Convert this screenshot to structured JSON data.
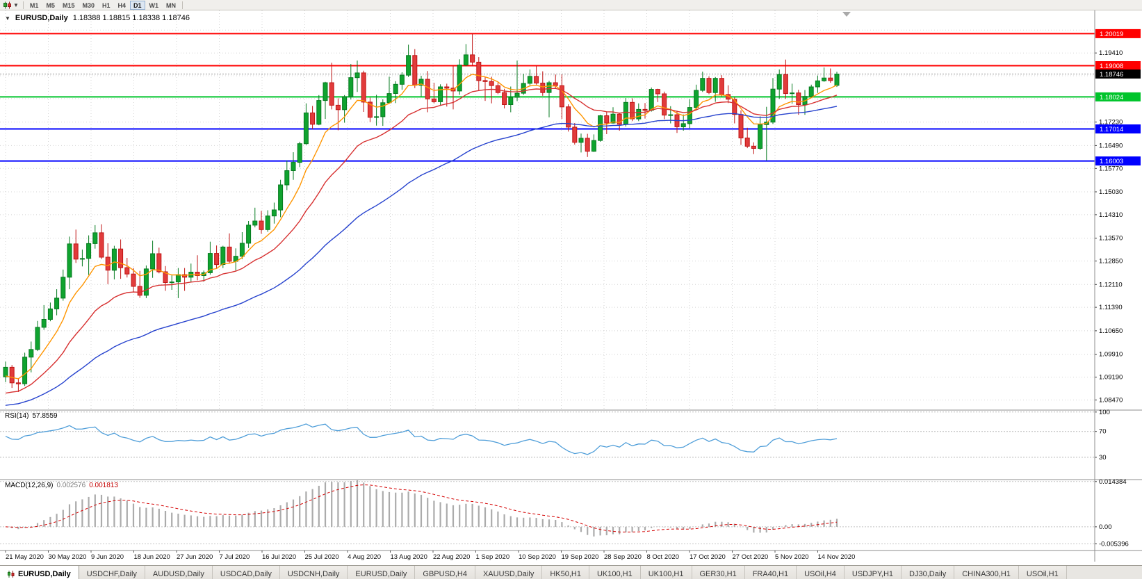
{
  "toolbar": {
    "timeframes": [
      "M1",
      "M5",
      "M15",
      "M30",
      "H1",
      "H4",
      "D1",
      "W1",
      "MN"
    ],
    "active_timeframe": "D1"
  },
  "chart": {
    "title": "EURUSD,Daily",
    "ohlc_display": "1.18388 1.18815 1.18338 1.18746",
    "open": "1.18388",
    "high": "1.18815",
    "low": "1.18338",
    "close": "1.18746"
  },
  "price_scale": {
    "ticks": [
      "1.19410",
      "1.17230",
      "1.16490",
      "1.15770",
      "1.15030",
      "1.14310",
      "1.13570",
      "1.12850",
      "1.12110",
      "1.11390",
      "1.10650",
      "1.09910",
      "1.09190",
      "1.08470"
    ],
    "hidden_grid": [
      "1.20130",
      "1.18690",
      "1.17970"
    ],
    "min": 1.0815,
    "max": 1.2075
  },
  "chart_data": {
    "type": "candlestick",
    "symbol": "EURUSD",
    "timeframe": "Daily",
    "title": "EURUSD,Daily",
    "x_labels": [
      "21 May 2020",
      "30 May 2020",
      "9 Jun 2020",
      "18 Jun 2020",
      "27 Jun 2020",
      "7 Jul 2020",
      "16 Jul 2020",
      "25 Jul 2020",
      "4 Aug 2020",
      "13 Aug 2020",
      "22 Aug 2020",
      "1 Sep 2020",
      "10 Sep 2020",
      "19 Sep 2020",
      "28 Sep 2020",
      "8 Oct 2020",
      "17 Oct 2020",
      "27 Oct 2020",
      "5 Nov 2020",
      "14 Nov 2020"
    ],
    "ylim": [
      1.0815,
      1.2075
    ],
    "candles": [
      [
        1.092,
        1.0968,
        1.0903,
        1.095
      ],
      [
        1.095,
        1.0957,
        1.0885,
        1.0901
      ],
      [
        1.0901,
        1.0916,
        1.0872,
        1.0898
      ],
      [
        1.0898,
        1.0996,
        1.0891,
        1.0982
      ],
      [
        1.0982,
        1.1031,
        1.0934,
        1.1006
      ],
      [
        1.1006,
        1.1096,
        1.1001,
        1.1076
      ],
      [
        1.1076,
        1.1146,
        1.1068,
        1.1101
      ],
      [
        1.1101,
        1.1154,
        1.1095,
        1.1134
      ],
      [
        1.1134,
        1.1196,
        1.1114,
        1.1168
      ],
      [
        1.1168,
        1.1258,
        1.116,
        1.1234
      ],
      [
        1.1234,
        1.1362,
        1.1196,
        1.1339
      ],
      [
        1.1339,
        1.1384,
        1.1279,
        1.1291
      ],
      [
        1.1291,
        1.1321,
        1.1268,
        1.1293
      ],
      [
        1.1293,
        1.1366,
        1.1241,
        1.134
      ],
      [
        1.134,
        1.1398,
        1.1324,
        1.1374
      ],
      [
        1.1374,
        1.1401,
        1.1291,
        1.1297
      ],
      [
        1.1297,
        1.1341,
        1.1212,
        1.1256
      ],
      [
        1.1256,
        1.1333,
        1.1227,
        1.1323
      ],
      [
        1.1323,
        1.1353,
        1.1229,
        1.1264
      ],
      [
        1.1264,
        1.1295,
        1.1233,
        1.1244
      ],
      [
        1.1244,
        1.1263,
        1.1186,
        1.1205
      ],
      [
        1.1205,
        1.1254,
        1.1169,
        1.1177
      ],
      [
        1.1177,
        1.1271,
        1.1168,
        1.126
      ],
      [
        1.126,
        1.1349,
        1.1232,
        1.1308
      ],
      [
        1.1308,
        1.1327,
        1.1246,
        1.1251
      ],
      [
        1.1251,
        1.1269,
        1.1191,
        1.1217
      ],
      [
        1.1217,
        1.124,
        1.1194,
        1.1219
      ],
      [
        1.1219,
        1.1263,
        1.1168,
        1.1242
      ],
      [
        1.1242,
        1.1263,
        1.1191,
        1.1234
      ],
      [
        1.1234,
        1.1277,
        1.1218,
        1.125
      ],
      [
        1.125,
        1.1303,
        1.1224,
        1.1239
      ],
      [
        1.1239,
        1.1255,
        1.122,
        1.1248
      ],
      [
        1.1248,
        1.1346,
        1.1242,
        1.1309
      ],
      [
        1.1309,
        1.1334,
        1.126,
        1.1274
      ],
      [
        1.1274,
        1.1333,
        1.1263,
        1.1329
      ],
      [
        1.1329,
        1.1372,
        1.1277,
        1.1284
      ],
      [
        1.1284,
        1.1325,
        1.1255,
        1.13
      ],
      [
        1.13,
        1.1376,
        1.1291,
        1.1341
      ],
      [
        1.1341,
        1.1411,
        1.1326,
        1.1398
      ],
      [
        1.1398,
        1.1453,
        1.1391,
        1.1411
      ],
      [
        1.1411,
        1.1443,
        1.1371,
        1.1384
      ],
      [
        1.1384,
        1.1445,
        1.1377,
        1.1427
      ],
      [
        1.1427,
        1.1469,
        1.1403,
        1.1446
      ],
      [
        1.1446,
        1.1541,
        1.1423,
        1.1525
      ],
      [
        1.1525,
        1.1602,
        1.1508,
        1.157
      ],
      [
        1.157,
        1.1628,
        1.1541,
        1.1596
      ],
      [
        1.1596,
        1.1661,
        1.1581,
        1.1655
      ],
      [
        1.1655,
        1.1782,
        1.1651,
        1.1752
      ],
      [
        1.1752,
        1.1774,
        1.1701,
        1.1716
      ],
      [
        1.1716,
        1.1808,
        1.1713,
        1.1791
      ],
      [
        1.1791,
        1.185,
        1.1733,
        1.1847
      ],
      [
        1.1847,
        1.191,
        1.1763,
        1.1776
      ],
      [
        1.1776,
        1.1798,
        1.1697,
        1.1762
      ],
      [
        1.1762,
        1.1808,
        1.1721,
        1.1803
      ],
      [
        1.1803,
        1.1906,
        1.1794,
        1.1863
      ],
      [
        1.1863,
        1.1917,
        1.1818,
        1.1878
      ],
      [
        1.1878,
        1.1885,
        1.1755,
        1.1786
      ],
      [
        1.1786,
        1.18,
        1.1723,
        1.1738
      ],
      [
        1.1738,
        1.1809,
        1.1712,
        1.174
      ],
      [
        1.174,
        1.1795,
        1.1711,
        1.1784
      ],
      [
        1.1784,
        1.1866,
        1.1783,
        1.1813
      ],
      [
        1.1813,
        1.1852,
        1.1783,
        1.1842
      ],
      [
        1.1842,
        1.188,
        1.1825,
        1.1871
      ],
      [
        1.1871,
        1.1967,
        1.1865,
        1.1933
      ],
      [
        1.1933,
        1.1953,
        1.183,
        1.1839
      ],
      [
        1.1839,
        1.1869,
        1.1804,
        1.1858
      ],
      [
        1.1858,
        1.1884,
        1.1754,
        1.1796
      ],
      [
        1.1796,
        1.1847,
        1.1782,
        1.1787
      ],
      [
        1.1787,
        1.1842,
        1.1774,
        1.1834
      ],
      [
        1.1834,
        1.1844,
        1.1772,
        1.183
      ],
      [
        1.183,
        1.1901,
        1.1763,
        1.1821
      ],
      [
        1.1821,
        1.1921,
        1.1809,
        1.1903
      ],
      [
        1.1903,
        1.1969,
        1.1899,
        1.1935
      ],
      [
        1.1935,
        1.2002,
        1.1899,
        1.1912
      ],
      [
        1.1912,
        1.1928,
        1.1823,
        1.1854
      ],
      [
        1.1854,
        1.1866,
        1.179,
        1.1851
      ],
      [
        1.1851,
        1.1866,
        1.1782,
        1.1838
      ],
      [
        1.1838,
        1.1851,
        1.1811,
        1.1816
      ],
      [
        1.1816,
        1.1828,
        1.1766,
        1.1778
      ],
      [
        1.1778,
        1.1835,
        1.1754,
        1.1801
      ],
      [
        1.1801,
        1.1917,
        1.1789,
        1.1814
      ],
      [
        1.1814,
        1.1875,
        1.1809,
        1.1845
      ],
      [
        1.1845,
        1.1889,
        1.1839,
        1.1867
      ],
      [
        1.1867,
        1.1901,
        1.1841,
        1.1846
      ],
      [
        1.1846,
        1.1883,
        1.1806,
        1.1816
      ],
      [
        1.1816,
        1.1853,
        1.1738,
        1.1847
      ],
      [
        1.1847,
        1.1873,
        1.1828,
        1.1838
      ],
      [
        1.1838,
        1.1873,
        1.1733,
        1.1771
      ],
      [
        1.1771,
        1.1779,
        1.1693,
        1.1707
      ],
      [
        1.1707,
        1.172,
        1.1652,
        1.1659
      ],
      [
        1.1659,
        1.1687,
        1.1627,
        1.1672
      ],
      [
        1.1672,
        1.1686,
        1.1613,
        1.1631
      ],
      [
        1.1631,
        1.1684,
        1.1629,
        1.1665
      ],
      [
        1.1665,
        1.1746,
        1.1661,
        1.1743
      ],
      [
        1.1743,
        1.1756,
        1.1685,
        1.172
      ],
      [
        1.172,
        1.177,
        1.1718,
        1.1748
      ],
      [
        1.1748,
        1.1753,
        1.1696,
        1.1716
      ],
      [
        1.1716,
        1.1799,
        1.1709,
        1.1785
      ],
      [
        1.1785,
        1.1798,
        1.1726,
        1.1733
      ],
      [
        1.1733,
        1.1782,
        1.1726,
        1.1763
      ],
      [
        1.1763,
        1.1783,
        1.1734,
        1.176
      ],
      [
        1.176,
        1.1832,
        1.1756,
        1.1826
      ],
      [
        1.1826,
        1.1828,
        1.1786,
        1.1812
      ],
      [
        1.1812,
        1.1819,
        1.1732,
        1.1745
      ],
      [
        1.1745,
        1.1773,
        1.1719,
        1.1746
      ],
      [
        1.1746,
        1.1759,
        1.1689,
        1.1708
      ],
      [
        1.1708,
        1.1747,
        1.1696,
        1.1718
      ],
      [
        1.1718,
        1.1795,
        1.1704,
        1.1769
      ],
      [
        1.1769,
        1.1841,
        1.1761,
        1.1823
      ],
      [
        1.1823,
        1.1882,
        1.1818,
        1.1861
      ],
      [
        1.1861,
        1.1867,
        1.1811,
        1.1816
      ],
      [
        1.1816,
        1.1865,
        1.1787,
        1.1861
      ],
      [
        1.1861,
        1.1871,
        1.1804,
        1.181
      ],
      [
        1.181,
        1.1839,
        1.1783,
        1.1795
      ],
      [
        1.1795,
        1.1801,
        1.1719,
        1.1747
      ],
      [
        1.1747,
        1.176,
        1.1651,
        1.1673
      ],
      [
        1.1673,
        1.1705,
        1.1641,
        1.1647
      ],
      [
        1.1647,
        1.1659,
        1.1622,
        1.164
      ],
      [
        1.164,
        1.1741,
        1.1635,
        1.1715
      ],
      [
        1.1715,
        1.1771,
        1.1602,
        1.1723
      ],
      [
        1.1723,
        1.1862,
        1.1717,
        1.1827
      ],
      [
        1.1827,
        1.1889,
        1.1796,
        1.1873
      ],
      [
        1.1873,
        1.192,
        1.1796,
        1.1813
      ],
      [
        1.1813,
        1.1844,
        1.1781,
        1.1815
      ],
      [
        1.1815,
        1.1825,
        1.1746,
        1.1778
      ],
      [
        1.1778,
        1.1824,
        1.1746,
        1.1804
      ],
      [
        1.1804,
        1.1841,
        1.18,
        1.1834
      ],
      [
        1.1834,
        1.187,
        1.1815,
        1.1853
      ],
      [
        1.1853,
        1.1895,
        1.185,
        1.1862
      ],
      [
        1.1862,
        1.1892,
        1.1847,
        1.1854
      ],
      [
        1.18388,
        1.18815,
        1.18338,
        1.18746
      ]
    ],
    "moving_averages": [
      {
        "name": "ma-fast",
        "color": "#FF9500",
        "period": 8,
        "seed": 1.0915
      },
      {
        "name": "ma-medium",
        "color": "#D73030",
        "period": 20,
        "seed": 1.086
      },
      {
        "name": "ma-slow",
        "color": "#2743CE",
        "period": 50,
        "seed": 1.0825
      }
    ],
    "hlines": [
      {
        "label": "1.20019",
        "value": 1.20019,
        "color": "#FF0000"
      },
      {
        "label": "1.19008",
        "value": 1.19008,
        "color": "#FF0000"
      },
      {
        "label": "1.18024",
        "value": 1.18024,
        "color": "#00C42B"
      },
      {
        "label": "1.17014",
        "value": 1.17014,
        "color": "#0000FF"
      },
      {
        "label": "1.16003",
        "value": 1.16003,
        "color": "#0000FF"
      }
    ],
    "current_price": {
      "label": "1.18746",
      "value": 1.18746,
      "tag_color": "#000000"
    },
    "rsi": {
      "name": "RSI(14)",
      "value": "57.8559",
      "period": 14,
      "levels": [
        100,
        70,
        30
      ],
      "level_labels": [
        "100",
        "70",
        "30"
      ],
      "color": "#4F9ED9"
    },
    "macd": {
      "name": "MACD(12,26,9)",
      "macd_value": "0.002576",
      "signal_value": "0.001813",
      "fast": 12,
      "slow": 26,
      "signal": 9,
      "scale_labels": [
        {
          "label": "0.014384",
          "value": 0.014384
        },
        {
          "label": "0.00",
          "value": 0
        },
        {
          "label": "-0.005396",
          "value": -0.005396
        }
      ],
      "hist_color": "#ababab",
      "signal_color": "#d40000"
    }
  },
  "tabbar": {
    "active_index": 0,
    "tabs": [
      "EURUSD,Daily",
      "USDCHF,Daily",
      "AUDUSD,Daily",
      "USDCAD,Daily",
      "USDCNH,Daily",
      "EURUSD,Daily",
      "GBPUSD,H4",
      "XAUUSD,Daily",
      "HK50,H1",
      "UK100,H1",
      "UK100,H1",
      "GER30,H1",
      "FRA40,H1",
      "USOil,H4",
      "USDJPY,H1",
      "DJ30,Daily",
      "CHINA300,H1",
      "USOil,H1"
    ]
  },
  "colors": {
    "bull": "#0FA32F",
    "bull_border": "#067A1F",
    "bear": "#E13B3B",
    "bear_border": "#C01414",
    "grid": "#d4d4d4",
    "panel_border": "#8c8c8c",
    "background": "#ffffff"
  }
}
